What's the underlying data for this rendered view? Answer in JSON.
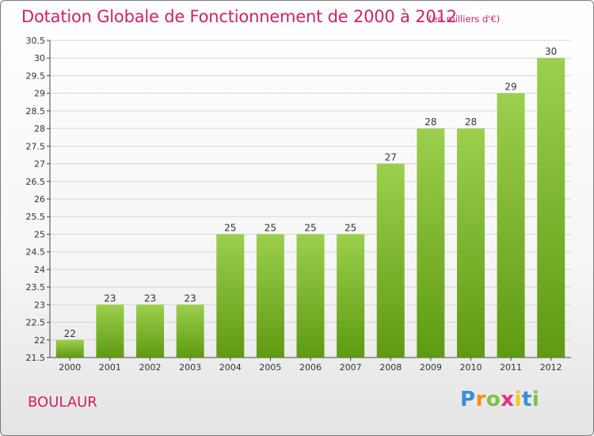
{
  "title": "Dotation Globale de Fonctionnement de 2000 à 2012",
  "subtitle": "(en milliers d'€)",
  "commune": "BOULAUR",
  "logo": {
    "letters": [
      "P",
      "r",
      "o",
      "x",
      "i",
      "t",
      "i"
    ]
  },
  "colors": {
    "title": "#cc2266",
    "bar_top": "#9ccf4d",
    "bar_bottom": "#5f9a12",
    "grid": "#d6d6d6"
  },
  "chart_data": {
    "type": "bar",
    "categories": [
      "2000",
      "2001",
      "2002",
      "2003",
      "2004",
      "2005",
      "2006",
      "2007",
      "2008",
      "2009",
      "2010",
      "2011",
      "2012"
    ],
    "values": [
      22,
      23,
      23,
      23,
      25,
      25,
      25,
      25,
      27,
      28,
      28,
      29,
      30
    ],
    "data_labels": [
      "22",
      "23",
      "23",
      "23",
      "25",
      "25",
      "25",
      "25",
      "27",
      "28",
      "28",
      "29",
      "30"
    ],
    "y_ticks": [
      "21.5",
      "22",
      "22.5",
      "23",
      "23.5",
      "24",
      "24.5",
      "25",
      "25.5",
      "26",
      "26.5",
      "27",
      "27.5",
      "28",
      "28.5",
      "29",
      "29.5",
      "30",
      "30.5"
    ],
    "ylim": [
      21.5,
      30.5
    ],
    "grid": true,
    "xlabel": "",
    "ylabel": ""
  }
}
